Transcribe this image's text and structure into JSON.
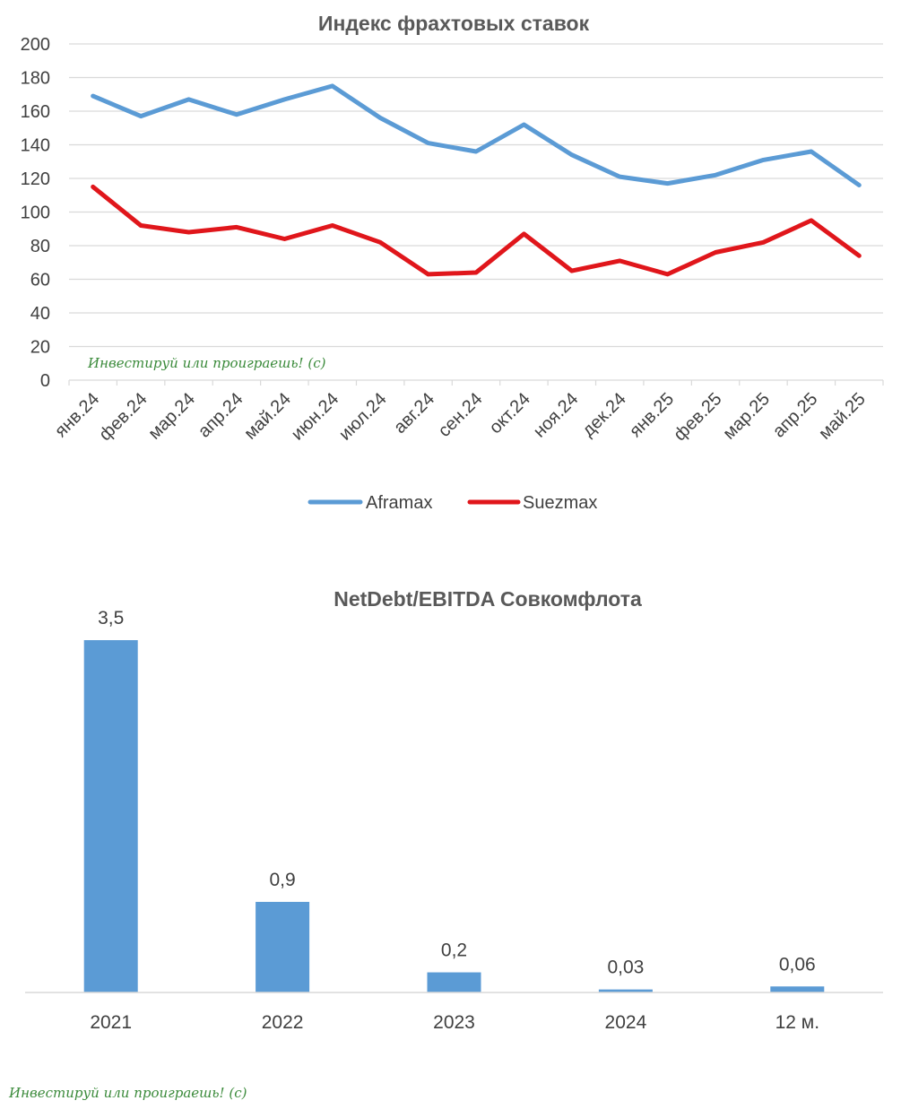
{
  "watermark": "Инвестируй или проиграешь! (c)",
  "chart_data": [
    {
      "type": "line",
      "title": "Индекс фрахтовых ставок",
      "categories": [
        "янв.24",
        "фев.24",
        "мар.24",
        "апр.24",
        "май.24",
        "июн.24",
        "июл.24",
        "авг.24",
        "сен.24",
        "окт.24",
        "ноя.24",
        "дек.24",
        "янв.25",
        "фев.25",
        "мар.25",
        "апр.25",
        "май.25"
      ],
      "ylim": [
        0,
        200
      ],
      "yticks": [
        "0",
        "20",
        "40",
        "60",
        "80",
        "100",
        "120",
        "140",
        "160",
        "180",
        "200"
      ],
      "grid": true,
      "legend_position": "bottom",
      "series": [
        {
          "name": "Aframax",
          "color": "#5b9bd5",
          "values": [
            169,
            157,
            167,
            158,
            167,
            175,
            156,
            141,
            136,
            152,
            134,
            121,
            117,
            122,
            131,
            136,
            116
          ]
        },
        {
          "name": "Suezmax",
          "color": "#e0161b",
          "values": [
            115,
            92,
            88,
            91,
            84,
            92,
            82,
            63,
            64,
            87,
            65,
            71,
            63,
            76,
            82,
            95,
            74
          ]
        }
      ]
    },
    {
      "type": "bar",
      "title": "NetDebt/EBITDA Совкомфлота",
      "categories": [
        "2021",
        "2022",
        "2023",
        "2024",
        "12 м."
      ],
      "values": [
        3.5,
        0.9,
        0.2,
        0.03,
        0.06
      ],
      "value_labels": [
        "3,5",
        "0,9",
        "0,2",
        "0,03",
        "0,06"
      ],
      "ylim": [
        0,
        3.5
      ],
      "color": "#5b9bd5",
      "grid": false
    }
  ]
}
